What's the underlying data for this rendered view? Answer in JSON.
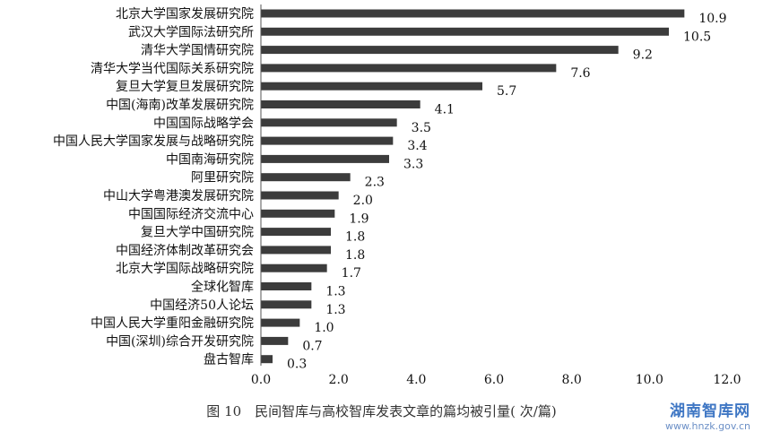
{
  "chart_data": {
    "type": "bar",
    "orientation": "horizontal",
    "categories": [
      "北京大学国家发展研究院",
      "武汉大学国际法研究所",
      "清华大学国情研究院",
      "清华大学当代国际关系研究院",
      "复旦大学复旦发展研究院",
      "中国(海南)改革发展研究院",
      "中国国际战略学会",
      "中国人民大学国家发展与战略研究院",
      "中国南海研究院",
      "阿里研究院",
      "中山大学粤港澳发展研究院",
      "中国国际经济交流中心",
      "复旦大学中国研究院",
      "中国经济体制改革研究会",
      "北京大学国际战略研究院",
      "全球化智库",
      "中国经济50人论坛",
      "中国人民大学重阳金融研究院",
      "中国(深圳)综合开发研究院",
      "盘古智库"
    ],
    "values": [
      10.9,
      10.5,
      9.2,
      7.6,
      5.7,
      4.1,
      3.5,
      3.4,
      3.3,
      2.3,
      2.0,
      1.9,
      1.8,
      1.8,
      1.7,
      1.3,
      1.3,
      1.0,
      0.7,
      0.3
    ],
    "value_labels": [
      "10.9",
      "10.5",
      "9.2",
      "7.6",
      "5.7",
      "4.1",
      "3.5",
      "3.4",
      "3.3",
      "2.3",
      "2.0",
      "1.9",
      "1.8",
      "1.8",
      "1.7",
      "1.3",
      "1.3",
      "1.0",
      "0.7",
      "0.3"
    ],
    "xticks": [
      "0.0",
      "2.0",
      "4.0",
      "6.0",
      "8.0",
      "10.0",
      "12.0"
    ],
    "xlim": [
      0,
      12
    ],
    "bar_color": "#3c3c3c",
    "grid": false,
    "legend": "none"
  },
  "caption": "图 10　民间智库与高校智库发表文章的篇均被引量( 次/篇)",
  "watermark": {
    "title": "湖南智库网",
    "url": "www.hnzk.gov.cn"
  }
}
